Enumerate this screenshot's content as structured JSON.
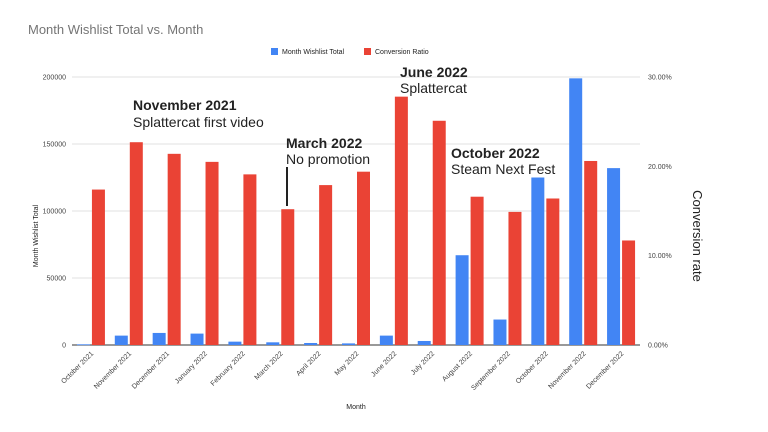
{
  "chart_data": {
    "type": "bar",
    "title": "Month Wishlist Total vs. Month",
    "xlabel": "Month",
    "ylabel_left": "Month Wishlist Total",
    "ylabel_right": "Conversion rate",
    "categories": [
      "October 2021",
      "November 2021",
      "December 2021",
      "January 2022",
      "February 2022",
      "March 2022",
      "April 2022",
      "May 2022",
      "June 2022",
      "July 2022",
      "August 2022",
      "September 2022",
      "October 2022",
      "November 2022",
      "December 2022"
    ],
    "series": [
      {
        "name": "Month Wishlist Total",
        "axis": "left",
        "color": "#4285f4",
        "values": [
          500,
          7000,
          9000,
          8500,
          2500,
          2000,
          1500,
          1200,
          7000,
          3000,
          67000,
          19000,
          125000,
          199000,
          132000
        ]
      },
      {
        "name": "Conversion Ratio",
        "axis": "right",
        "color": "#ea4335",
        "values": [
          17.4,
          22.7,
          21.4,
          20.5,
          19.1,
          15.2,
          17.9,
          19.4,
          27.8,
          25.1,
          16.6,
          14.9,
          16.4,
          20.6,
          11.7
        ]
      }
    ],
    "ylim_left": [
      0,
      200000
    ],
    "yticks_left": [
      "0",
      "50000",
      "100000",
      "150000",
      "200000"
    ],
    "ylim_right": [
      0,
      30
    ],
    "yticks_right": [
      "0.00%",
      "10.00%",
      "20.00%",
      "30.00%"
    ],
    "legend_position": "top-center",
    "grid": true,
    "annotations": [
      {
        "title": "November 2021",
        "subtitle": "Splattercat first video"
      },
      {
        "title": "March 2022",
        "subtitle": "No promotion"
      },
      {
        "title": "June 2022",
        "subtitle": "Splattercat"
      },
      {
        "title": "October 2022",
        "subtitle": "Steam Next Fest"
      }
    ]
  }
}
